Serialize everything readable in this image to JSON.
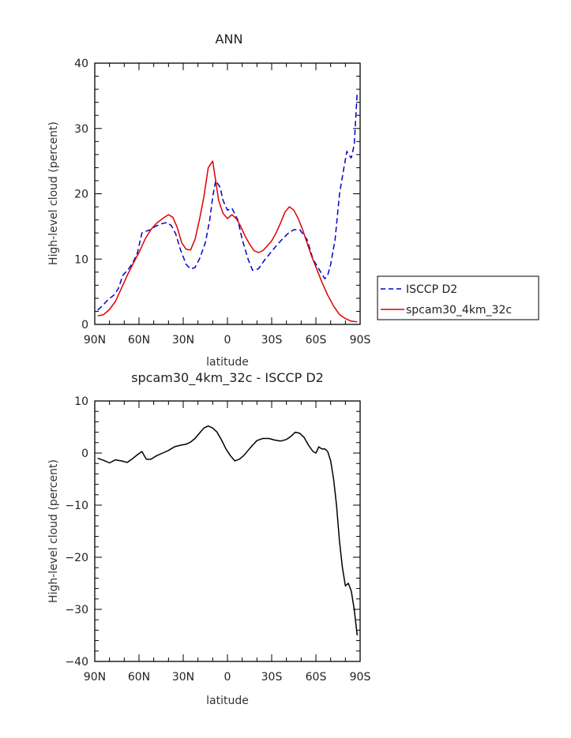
{
  "chart_data": [
    {
      "type": "line",
      "title": "ANN",
      "xlabel": "latitude",
      "ylabel": "High-level cloud (percent)",
      "xlim": [
        -90,
        90
      ],
      "ylim": [
        0,
        40
      ],
      "xticks": [
        -90,
        -60,
        -30,
        0,
        30,
        60,
        90
      ],
      "xticklabels": [
        "90N",
        "60N",
        "30N",
        "0",
        "30S",
        "60S",
        "90S"
      ],
      "yticks": [
        0,
        10,
        20,
        30,
        40
      ],
      "yticklabels": [
        "0",
        "10",
        "20",
        "30",
        "40"
      ],
      "legend": "right",
      "series": [
        {
          "name": "ISCCP D2",
          "color": "#0000cc",
          "dash": "dashed",
          "x": [
            -88,
            -85,
            -81,
            -77,
            -74,
            -71,
            -67,
            -64,
            -61,
            -58,
            -55,
            -52,
            -49,
            -45,
            -41,
            -38,
            -35,
            -32,
            -28,
            -25,
            -22,
            -19,
            -15,
            -12,
            -10,
            -8,
            -5,
            -3,
            0,
            3,
            7,
            10,
            14,
            17,
            21,
            25,
            29,
            33,
            37,
            41,
            45,
            49,
            54,
            58,
            62,
            66,
            68,
            70,
            73,
            76,
            79,
            81,
            82,
            84,
            86,
            88
          ],
          "y": [
            2.2,
            2.8,
            3.8,
            4.5,
            5.5,
            7.5,
            8.5,
            9.5,
            11.0,
            14.0,
            14.3,
            14.5,
            15.0,
            15.4,
            15.6,
            15.1,
            13.8,
            11.5,
            9.2,
            8.5,
            8.7,
            10.0,
            12.5,
            16.0,
            19.5,
            22.0,
            21.0,
            19.0,
            17.5,
            17.8,
            16.0,
            13.0,
            10.0,
            8.3,
            8.5,
            9.8,
            10.9,
            12.0,
            13.0,
            13.9,
            14.5,
            14.5,
            13.0,
            10.0,
            8.5,
            7.0,
            7.5,
            9.2,
            13.0,
            20.0,
            24.0,
            26.5,
            26.0,
            25.5,
            27.5,
            35.5
          ]
        },
        {
          "name": "spcam30_4km_32c",
          "color": "#dd0000",
          "dash": "solid",
          "x": [
            -88,
            -84,
            -80,
            -76,
            -72,
            -68,
            -64,
            -60,
            -56,
            -52,
            -48,
            -44,
            -40,
            -37,
            -34,
            -31,
            -28,
            -25,
            -22,
            -19,
            -16,
            -13,
            -10,
            -8,
            -6,
            -3,
            0,
            3,
            6,
            9,
            12,
            15,
            18,
            21,
            24,
            27,
            30,
            33,
            36,
            39,
            42,
            45,
            48,
            51,
            54,
            57,
            60,
            64,
            68,
            72,
            76,
            80,
            84,
            88
          ],
          "y": [
            1.3,
            1.5,
            2.3,
            3.5,
            5.5,
            7.5,
            9.3,
            11.0,
            13.0,
            14.5,
            15.5,
            16.2,
            16.8,
            16.4,
            14.8,
            12.5,
            11.5,
            11.4,
            13.0,
            16.0,
            19.5,
            24.0,
            25.0,
            22.0,
            19.0,
            17.0,
            16.2,
            16.8,
            16.2,
            15.0,
            13.5,
            12.3,
            11.3,
            11.0,
            11.3,
            12.0,
            12.8,
            14.0,
            15.5,
            17.2,
            18.0,
            17.5,
            16.2,
            14.5,
            12.5,
            10.5,
            8.8,
            6.5,
            4.5,
            2.8,
            1.5,
            0.9,
            0.5,
            0.4
          ]
        }
      ]
    },
    {
      "type": "line",
      "title": "spcam30_4km_32c - ISCCP D2",
      "xlabel": "latitude",
      "ylabel": "High-level cloud (percent)",
      "xlim": [
        -90,
        90
      ],
      "ylim": [
        -40,
        10
      ],
      "xticks": [
        -90,
        -60,
        -30,
        0,
        30,
        60,
        90
      ],
      "xticklabels": [
        "90N",
        "60N",
        "30N",
        "0",
        "30S",
        "60S",
        "90S"
      ],
      "yticks": [
        -40,
        -30,
        -20,
        -10,
        0,
        10
      ],
      "yticklabels": [
        "−40",
        "−30",
        "−20",
        "−10",
        "0",
        "10"
      ],
      "series": [
        {
          "color": "#000000",
          "dash": "solid",
          "x": [
            -88,
            -84,
            -80,
            -76,
            -72,
            -68,
            -64,
            -61,
            -58,
            -55,
            -52,
            -48,
            -44,
            -40,
            -36,
            -32,
            -28,
            -25,
            -22,
            -19,
            -16,
            -13,
            -10,
            -7,
            -4,
            -1,
            2,
            5,
            8,
            11,
            14,
            17,
            20,
            24,
            28,
            32,
            36,
            40,
            43,
            46,
            49,
            52,
            55,
            58,
            60,
            62,
            64,
            66,
            68,
            70,
            72,
            74,
            76,
            78,
            80,
            82,
            84,
            86,
            88
          ],
          "y": [
            -1.0,
            -1.4,
            -1.9,
            -1.3,
            -1.5,
            -1.8,
            -1.0,
            -0.3,
            0.3,
            -1.2,
            -1.2,
            -0.5,
            0.0,
            0.5,
            1.2,
            1.5,
            1.7,
            2.1,
            2.8,
            3.8,
            4.8,
            5.2,
            4.8,
            4.0,
            2.5,
            0.8,
            -0.5,
            -1.5,
            -1.2,
            -0.5,
            0.5,
            1.5,
            2.4,
            2.8,
            2.8,
            2.5,
            2.3,
            2.6,
            3.2,
            4.0,
            3.8,
            3.0,
            1.5,
            0.3,
            0.0,
            1.2,
            0.8,
            0.8,
            0.3,
            -1.5,
            -5.0,
            -10.0,
            -17.0,
            -22.0,
            -25.5,
            -25.0,
            -26.5,
            -30.0,
            -35.0
          ]
        }
      ]
    }
  ]
}
